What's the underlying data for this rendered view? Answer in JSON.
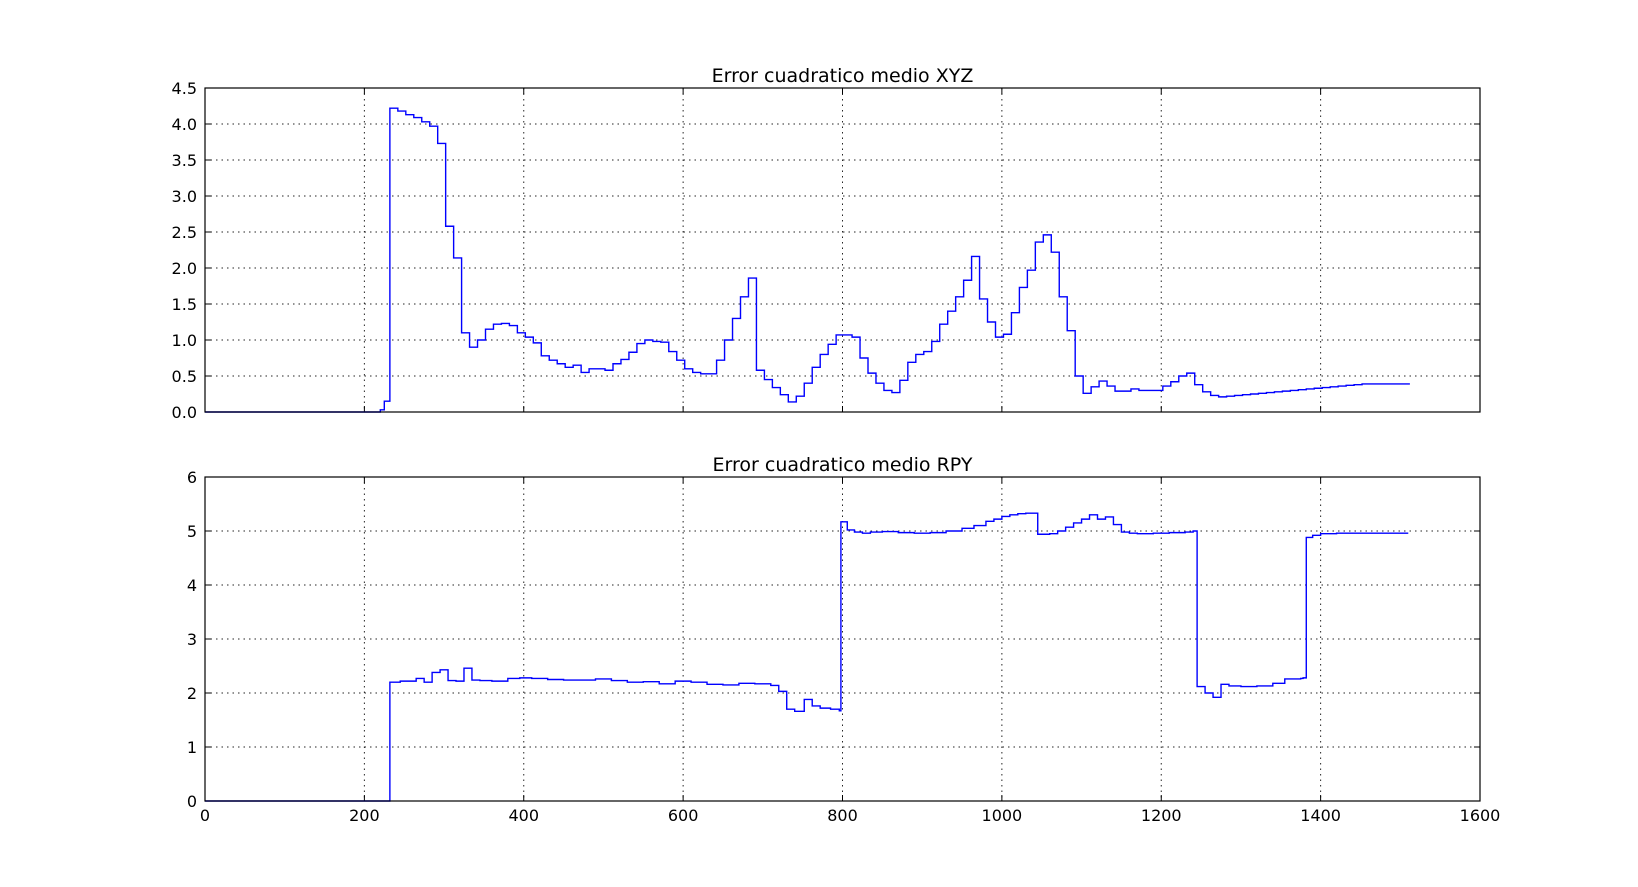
{
  "figure": {
    "background": "#ffffff"
  },
  "chart_data": [
    {
      "type": "line",
      "title": "Error cuadratico medio XYZ",
      "xlim": [
        0,
        1600
      ],
      "ylim": [
        0,
        4.5
      ],
      "grid": true,
      "xticks": [
        0,
        200,
        400,
        600,
        800,
        1000,
        1200,
        1400,
        1600
      ],
      "xtick_labels_visible": false,
      "yticks": [
        0.0,
        0.5,
        1.0,
        1.5,
        2.0,
        2.5,
        3.0,
        3.5,
        4.0,
        4.5
      ],
      "ytick_labels": [
        "0.0",
        "0.5",
        "1.0",
        "1.5",
        "2.0",
        "2.5",
        "3.0",
        "3.5",
        "4.0",
        "4.5"
      ],
      "series": [
        {
          "color": "#0000ff",
          "step": true,
          "x": [
            0,
            220,
            225,
            232,
            242,
            252,
            262,
            272,
            282,
            292,
            302,
            312,
            322,
            332,
            342,
            352,
            362,
            372,
            382,
            392,
            402,
            412,
            422,
            432,
            442,
            452,
            462,
            472,
            482,
            492,
            502,
            512,
            522,
            532,
            542,
            552,
            562,
            572,
            582,
            592,
            602,
            612,
            622,
            632,
            642,
            652,
            662,
            672,
            682,
            692,
            702,
            712,
            722,
            732,
            742,
            752,
            762,
            772,
            782,
            792,
            802,
            812,
            822,
            832,
            842,
            852,
            862,
            872,
            882,
            892,
            902,
            912,
            922,
            932,
            942,
            952,
            962,
            972,
            982,
            992,
            1002,
            1012,
            1022,
            1032,
            1042,
            1052,
            1062,
            1072,
            1082,
            1092,
            1102,
            1112,
            1122,
            1132,
            1142,
            1152,
            1162,
            1172,
            1182,
            1192,
            1202,
            1212,
            1222,
            1232,
            1242,
            1252,
            1262,
            1272,
            1282,
            1292,
            1302,
            1312,
            1322,
            1332,
            1342,
            1352,
            1362,
            1372,
            1382,
            1392,
            1402,
            1412,
            1422,
            1432,
            1442,
            1452,
            1462,
            1472,
            1482,
            1492,
            1502,
            1512
          ],
          "y": [
            0.0,
            0.03,
            0.15,
            4.22,
            4.18,
            4.13,
            4.09,
            4.03,
            3.97,
            3.73,
            2.58,
            2.14,
            1.1,
            0.9,
            1.0,
            1.15,
            1.22,
            1.23,
            1.2,
            1.1,
            1.04,
            0.96,
            0.78,
            0.72,
            0.67,
            0.62,
            0.65,
            0.55,
            0.6,
            0.6,
            0.58,
            0.67,
            0.73,
            0.83,
            0.95,
            1.0,
            0.98,
            0.97,
            0.84,
            0.72,
            0.6,
            0.55,
            0.53,
            0.53,
            0.72,
            1.0,
            1.3,
            1.6,
            1.86,
            0.58,
            0.45,
            0.34,
            0.24,
            0.14,
            0.22,
            0.4,
            0.62,
            0.8,
            0.94,
            1.07,
            1.07,
            1.04,
            0.75,
            0.54,
            0.4,
            0.3,
            0.27,
            0.44,
            0.69,
            0.8,
            0.84,
            0.98,
            1.22,
            1.4,
            1.6,
            1.83,
            2.16,
            1.57,
            1.25,
            1.04,
            1.08,
            1.38,
            1.73,
            1.97,
            2.36,
            2.46,
            2.22,
            1.6,
            1.13,
            0.5,
            0.26,
            0.35,
            0.43,
            0.36,
            0.29,
            0.29,
            0.32,
            0.3,
            0.3,
            0.3,
            0.36,
            0.42,
            0.5,
            0.54,
            0.38,
            0.28,
            0.23,
            0.21,
            0.22,
            0.23,
            0.24,
            0.25,
            0.26,
            0.27,
            0.28,
            0.29,
            0.3,
            0.31,
            0.32,
            0.33,
            0.34,
            0.35,
            0.36,
            0.37,
            0.38,
            0.39,
            0.39,
            0.39,
            0.39,
            0.39,
            0.39,
            0.39
          ]
        }
      ]
    },
    {
      "type": "line",
      "title": "Error cuadratico medio RPY",
      "xlim": [
        0,
        1600
      ],
      "ylim": [
        0,
        6
      ],
      "grid": true,
      "xticks": [
        0,
        200,
        400,
        600,
        800,
        1000,
        1200,
        1400,
        1600
      ],
      "xtick_labels": [
        "0",
        "200",
        "400",
        "600",
        "800",
        "1000",
        "1200",
        "1400",
        "1600"
      ],
      "yticks": [
        0,
        1,
        2,
        3,
        4,
        5,
        6
      ],
      "ytick_labels": [
        "0",
        "1",
        "2",
        "3",
        "4",
        "5",
        "6"
      ],
      "series": [
        {
          "color": "#0000ff",
          "step": true,
          "x": [
            0,
            230,
            232,
            245,
            255,
            265,
            275,
            285,
            295,
            305,
            315,
            325,
            335,
            345,
            360,
            380,
            395,
            410,
            430,
            450,
            470,
            490,
            510,
            530,
            550,
            570,
            590,
            610,
            630,
            650,
            670,
            690,
            710,
            720,
            730,
            740,
            752,
            762,
            772,
            785,
            796,
            798,
            806,
            815,
            825,
            835,
            850,
            870,
            890,
            910,
            930,
            950,
            965,
            980,
            990,
            1000,
            1010,
            1020,
            1030,
            1045,
            1060,
            1070,
            1080,
            1090,
            1100,
            1110,
            1120,
            1130,
            1140,
            1150,
            1160,
            1170,
            1190,
            1210,
            1230,
            1240,
            1245,
            1255,
            1265,
            1275,
            1285,
            1300,
            1320,
            1340,
            1355,
            1375,
            1378,
            1382,
            1390,
            1400,
            1420,
            1460,
            1510
          ],
          "y": [
            0.0,
            0.0,
            2.2,
            2.22,
            2.22,
            2.27,
            2.2,
            2.38,
            2.43,
            2.23,
            2.22,
            2.46,
            2.24,
            2.23,
            2.22,
            2.27,
            2.28,
            2.27,
            2.25,
            2.24,
            2.24,
            2.26,
            2.23,
            2.2,
            2.21,
            2.17,
            2.22,
            2.2,
            2.16,
            2.15,
            2.18,
            2.17,
            2.14,
            2.03,
            1.7,
            1.66,
            1.88,
            1.76,
            1.72,
            1.7,
            1.67,
            5.17,
            5.02,
            4.98,
            4.96,
            4.98,
            4.99,
            4.97,
            4.96,
            4.97,
            5.0,
            5.05,
            5.1,
            5.18,
            5.22,
            5.27,
            5.3,
            5.32,
            5.33,
            4.94,
            4.95,
            5.0,
            5.07,
            5.15,
            5.22,
            5.3,
            5.22,
            5.26,
            5.12,
            4.98,
            4.96,
            4.95,
            4.96,
            4.97,
            4.98,
            5.0,
            2.12,
            2.0,
            1.92,
            2.16,
            2.13,
            2.12,
            2.13,
            2.18,
            2.26,
            2.27,
            2.28,
            4.88,
            4.92,
            4.95,
            4.96,
            4.96,
            4.96
          ]
        }
      ]
    }
  ]
}
